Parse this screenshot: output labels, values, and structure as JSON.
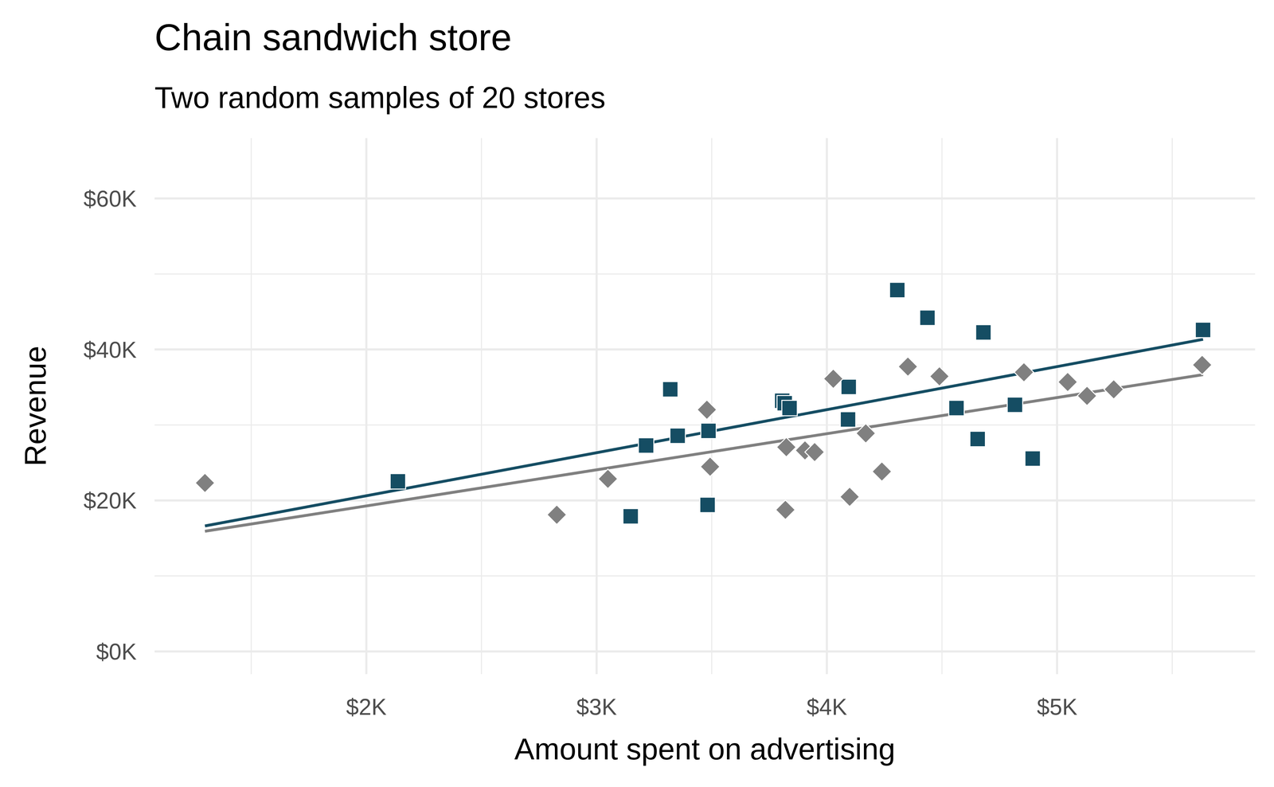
{
  "chart_data": {
    "type": "scatter",
    "title": "Chain sandwich store",
    "subtitle": "Two random samples of 20 stores",
    "x_label": "Amount spent on advertising",
    "y_label": "Revenue",
    "xlim": [
      1080,
      5860
    ],
    "ylim": [
      -3000,
      68000
    ],
    "xticks": [
      {
        "value": 2000,
        "label": "$2K"
      },
      {
        "value": 3000,
        "label": "$3K"
      },
      {
        "value": 4000,
        "label": "$4K"
      },
      {
        "value": 5000,
        "label": "$5K"
      }
    ],
    "yticks": [
      {
        "value": 0,
        "label": "$0K"
      },
      {
        "value": 20000,
        "label": "$20K"
      },
      {
        "value": 40000,
        "label": "$40K"
      },
      {
        "value": 60000,
        "label": "$60K"
      }
    ],
    "grid": true,
    "series": [
      {
        "color": "#154d63",
        "marker": "square",
        "x": [
          2137,
          3148,
          3215,
          3320,
          3352,
          3482,
          3486,
          3806,
          3817,
          3838,
          4095,
          4092,
          4306,
          4437,
          4563,
          4680,
          4655,
          4817,
          4894,
          5634
        ],
        "values": [
          22533,
          17900,
          27280,
          34720,
          28570,
          19410,
          29220,
          33210,
          32880,
          32240,
          35040,
          30730,
          47870,
          44200,
          32240,
          42260,
          28140,
          32670,
          25550,
          42590
        ]
      },
      {
        "color": "#808080",
        "marker": "diamond",
        "x": [
          1299,
          2827,
          3049,
          3479,
          3493,
          3820,
          3824,
          3905,
          3947,
          4028,
          4099,
          4169,
          4239,
          4352,
          4489,
          4856,
          5046,
          5130,
          5246,
          5630
        ],
        "values": [
          22320,
          18110,
          22860,
          32020,
          24470,
          18760,
          27060,
          26630,
          26410,
          36120,
          20480,
          28890,
          23830,
          37730,
          36440,
          36980,
          35690,
          33850,
          34720,
          37950
        ]
      }
    ]
  }
}
